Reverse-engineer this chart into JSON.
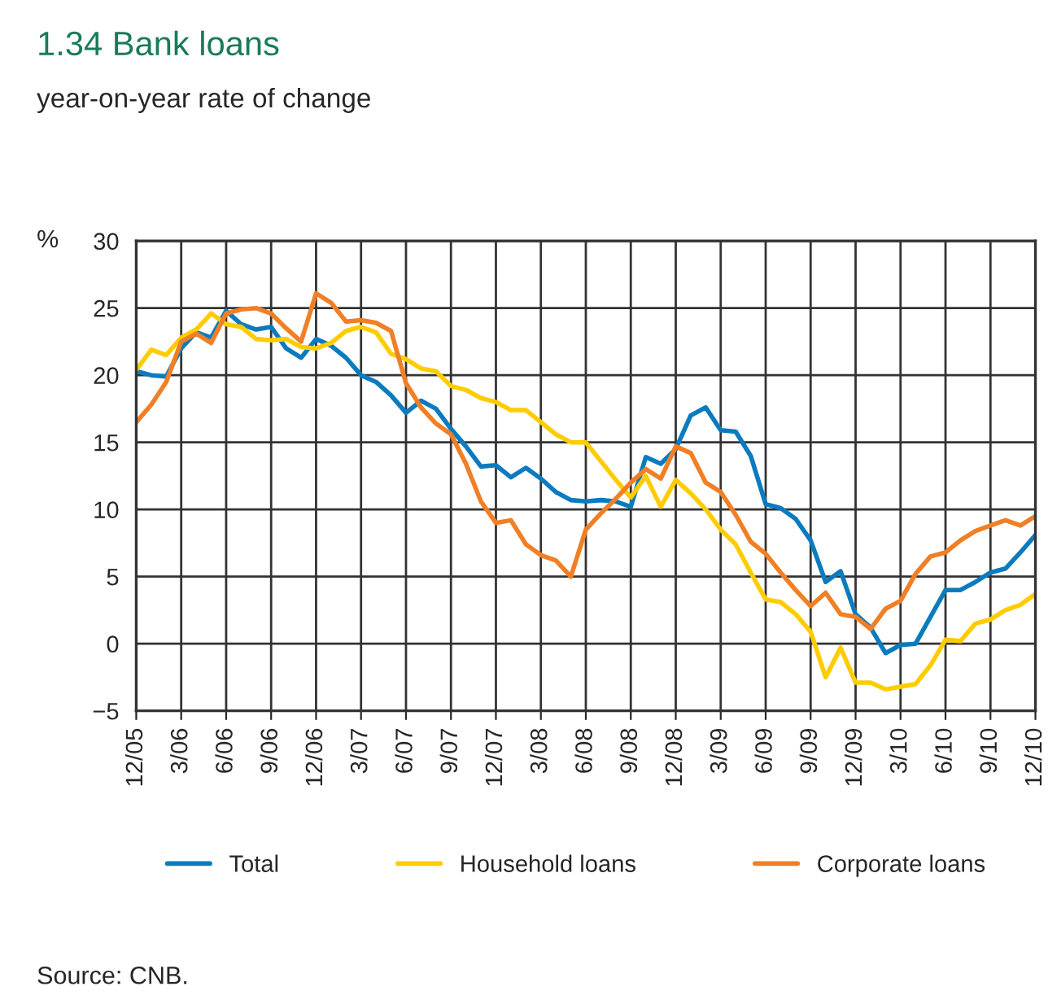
{
  "chart_data": {
    "type": "line",
    "title": "1.34 Bank loans",
    "subtitle": "year-on-year rate of change",
    "ylabel": "%",
    "categories": [
      "12/05",
      null,
      null,
      "3/06",
      null,
      null,
      "6/06",
      null,
      null,
      "9/06",
      null,
      null,
      "12/06",
      null,
      null,
      "3/07",
      null,
      null,
      "6/07",
      null,
      null,
      "9/07",
      null,
      null,
      "12/07",
      null,
      null,
      "3/08",
      null,
      null,
      "6/08",
      null,
      null,
      "9/08",
      null,
      null,
      "12/08",
      null,
      null,
      "3/09",
      null,
      null,
      "6/09",
      null,
      null,
      "9/09",
      null,
      null,
      "12/09",
      null,
      null,
      "3/10",
      null,
      null,
      "6/10",
      null,
      null,
      "9/10",
      null,
      null,
      "12/10"
    ],
    "series": [
      {
        "name": "Total",
        "color": "#0b7bbf",
        "values": [
          20.3,
          20.0,
          19.9,
          22.0,
          23.2,
          22.8,
          24.8,
          23.8,
          23.4,
          23.6,
          22.0,
          21.3,
          22.7,
          22.2,
          21.3,
          20.0,
          19.5,
          18.5,
          17.2,
          18.1,
          17.5,
          16.0,
          14.7,
          13.2,
          13.3,
          12.4,
          13.1,
          12.3,
          11.3,
          10.7,
          10.6,
          10.7,
          10.6,
          10.2,
          13.9,
          13.4,
          14.5,
          17.0,
          17.6,
          15.9,
          15.8,
          14.0,
          10.4,
          10.1,
          9.3,
          7.7,
          4.6,
          5.4,
          2.2,
          1.2,
          -0.7,
          -0.1,
          0.0,
          2.0,
          4.0,
          4.0,
          4.6,
          5.3,
          5.6,
          6.8,
          8.1
        ]
      },
      {
        "name": "Household loans",
        "color": "#ffcc00",
        "values": [
          20.4,
          21.9,
          21.5,
          22.8,
          23.4,
          24.6,
          23.8,
          23.6,
          22.7,
          22.6,
          22.7,
          22.1,
          22.0,
          22.4,
          23.3,
          23.6,
          23.2,
          21.6,
          21.2,
          20.5,
          20.3,
          19.2,
          18.9,
          18.3,
          18.0,
          17.4,
          17.4,
          16.5,
          15.6,
          15.0,
          15.0,
          13.6,
          12.2,
          10.9,
          12.5,
          10.2,
          12.2,
          11.2,
          10.0,
          8.5,
          7.4,
          5.3,
          3.3,
          3.1,
          2.2,
          0.9,
          -2.5,
          -0.3,
          -2.9,
          -2.9,
          -3.4,
          -3.2,
          -3.0,
          -1.6,
          0.3,
          0.2,
          1.5,
          1.8,
          2.5,
          2.9,
          3.7
        ]
      },
      {
        "name": "Corporate loans",
        "color": "#f07f26",
        "values": [
          16.5,
          17.8,
          19.5,
          22.5,
          23.1,
          22.4,
          24.6,
          24.9,
          25.0,
          24.6,
          23.5,
          22.5,
          26.1,
          25.4,
          24.0,
          24.1,
          23.9,
          23.3,
          19.4,
          17.6,
          16.4,
          15.6,
          13.4,
          10.6,
          9.0,
          9.2,
          7.4,
          6.6,
          6.2,
          5.0,
          8.5,
          9.7,
          10.8,
          12.0,
          13.0,
          12.3,
          14.7,
          14.2,
          12.0,
          11.3,
          9.6,
          7.6,
          6.7,
          5.3,
          4.0,
          2.8,
          3.8,
          2.2,
          2.0,
          1.1,
          2.6,
          3.2,
          5.2,
          6.5,
          6.8,
          7.7,
          8.4,
          8.8,
          9.2,
          8.8,
          9.5
        ]
      }
    ],
    "ylim": [
      -5,
      30
    ],
    "yticks": [
      {
        "value": -5,
        "label": "−5"
      },
      0,
      5,
      10,
      15,
      20,
      25,
      30
    ],
    "grid": true,
    "legend": "bottom",
    "marker": "none",
    "line_style": "solid",
    "annotations": [
      "Source: CNB."
    ]
  }
}
